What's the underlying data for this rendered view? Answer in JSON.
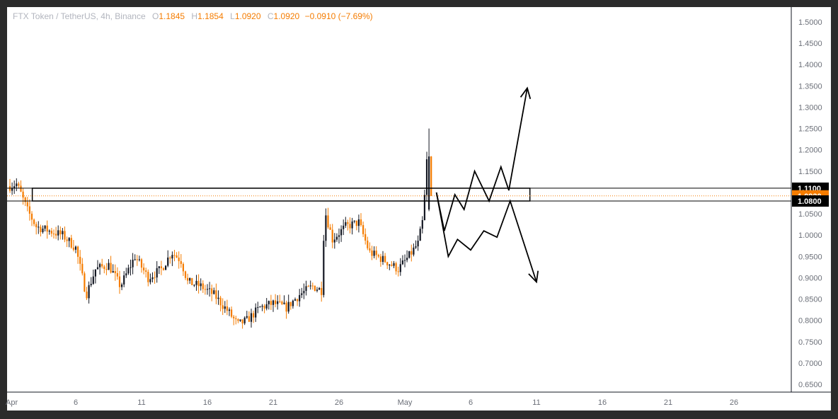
{
  "header": {
    "symbol": "FTX Token / TetherUS, 4h, Binance",
    "o_label": "O",
    "o": "1.1845",
    "h_label": "H",
    "h": "1.1854",
    "l_label": "L",
    "l": "1.0920",
    "c_label": "C",
    "c": "1.0920",
    "change": "−0.0910 (−7.69%)"
  },
  "colors": {
    "up": "#131722",
    "down": "#f57c00",
    "price_label": "#f57c00",
    "level_label": "#000000",
    "projection": "#000000"
  },
  "chart_data": {
    "type": "candlestick",
    "title": "",
    "ylim": [
      0.63,
      1.53
    ],
    "y_ticks": [
      "1.5000",
      "1.4500",
      "1.4000",
      "1.3500",
      "1.3000",
      "1.2500",
      "1.2000",
      "1.1500",
      "1.1000",
      "1.0500",
      "1.0000",
      "0.9500",
      "0.9000",
      "0.8500",
      "0.8000",
      "0.7500",
      "0.7000",
      "0.6500"
    ],
    "x_ticks": [
      "Apr",
      "6",
      "11",
      "16",
      "21",
      "26",
      "May",
      "6",
      "11",
      "16",
      "21",
      "26"
    ],
    "grid": false,
    "price_labels": [
      {
        "value": 1.11,
        "text": "1.1100",
        "kind": "level"
      },
      {
        "value": 1.092,
        "text": "1.0920",
        "kind": "last"
      },
      {
        "value": 1.08,
        "text": "1.0800",
        "kind": "level"
      }
    ],
    "resistance_zone": [
      1.08,
      1.11
    ],
    "last_price": 1.092,
    "path_anchors": [
      [
        0,
        1.115
      ],
      [
        0.5,
        1.12
      ],
      [
        0.8,
        1.1
      ],
      [
        1.3,
        1.06
      ],
      [
        2.0,
        1.02
      ],
      [
        3.0,
        1.01
      ],
      [
        4.0,
        1.0
      ],
      [
        5.0,
        0.97
      ],
      [
        5.8,
        0.86
      ],
      [
        6.5,
        0.92
      ],
      [
        7.5,
        0.93
      ],
      [
        8.4,
        0.88
      ],
      [
        9.5,
        0.95
      ],
      [
        10.5,
        0.9
      ],
      [
        11.5,
        0.92
      ],
      [
        12.3,
        0.96
      ],
      [
        13.0,
        0.94
      ],
      [
        13.5,
        0.89
      ],
      [
        14.5,
        0.88
      ],
      [
        15.5,
        0.86
      ],
      [
        16.6,
        0.82
      ],
      [
        17.3,
        0.79
      ],
      [
        18.0,
        0.8
      ],
      [
        19.0,
        0.83
      ],
      [
        20.0,
        0.84
      ],
      [
        21.0,
        0.83
      ],
      [
        22.0,
        0.86
      ],
      [
        23.0,
        0.88
      ],
      [
        23.7,
        0.87
      ],
      [
        23.9,
        1.06
      ],
      [
        24.5,
        0.99
      ],
      [
        25.5,
        1.02
      ],
      [
        26.5,
        1.03
      ],
      [
        27.3,
        0.96
      ],
      [
        28.5,
        0.94
      ],
      [
        29.5,
        0.92
      ],
      [
        30.3,
        0.95
      ],
      [
        31.0,
        0.98
      ],
      [
        31.4,
        1.04
      ],
      [
        31.7,
        1.19
      ],
      [
        32.0,
        1.092
      ]
    ],
    "projections": [
      {
        "name": "",
        "direction": "up",
        "points": [
          [
            32.4,
            1.1
          ],
          [
            33.0,
            1.01
          ],
          [
            33.8,
            1.095
          ],
          [
            34.5,
            1.06
          ],
          [
            35.3,
            1.15
          ],
          [
            36.4,
            1.08
          ],
          [
            37.3,
            1.16
          ],
          [
            37.9,
            1.105
          ],
          [
            39.3,
            1.345
          ]
        ]
      },
      {
        "name": "",
        "direction": "down",
        "points": [
          [
            32.4,
            1.1
          ],
          [
            33.3,
            0.95
          ],
          [
            34.0,
            0.99
          ],
          [
            35.0,
            0.965
          ],
          [
            36.0,
            1.01
          ],
          [
            37.0,
            0.995
          ],
          [
            38.0,
            1.08
          ],
          [
            40.0,
            0.89
          ]
        ]
      }
    ]
  }
}
